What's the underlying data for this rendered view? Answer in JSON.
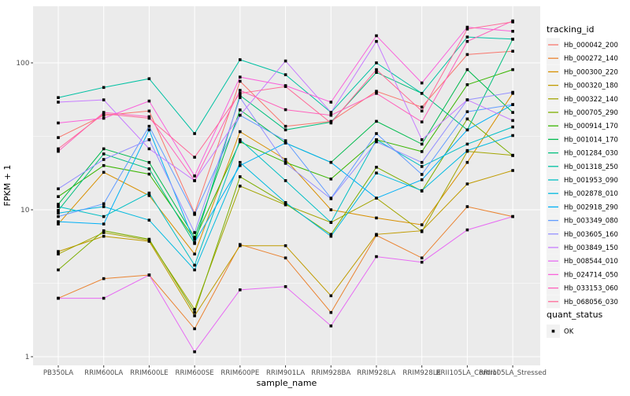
{
  "figure": {
    "background": "#FFFFFF",
    "panel_background": "#EBEBEB",
    "grid_color": "#FFFFFF",
    "tick_text_color": "#4D4D4D",
    "axis_title_color": "#000000",
    "marker_color": "#000000",
    "legend_key_background": "#F2F2F2"
  },
  "chart_data": {
    "type": "line",
    "title": "",
    "xlabel": "sample_name",
    "ylabel": "FPKM + 1",
    "y_scale": "log10",
    "y_ticks": [
      {
        "label": "1",
        "value": 1
      },
      {
        "label": "10",
        "value": 10
      },
      {
        "label": "100",
        "value": 100
      }
    ],
    "y_minor_ticks": [
      3.162,
      31.62
    ],
    "ylim": [
      1,
      243
    ],
    "grid": "white major+minor on gray panel",
    "legend_position": "right",
    "legend_title": "tracking_id",
    "point_legend": {
      "title": "quant_status",
      "items": [
        {
          "label": "OK",
          "marker": "black-square"
        }
      ]
    },
    "x_categories": [
      "PB350LA",
      "RRIM600LA",
      "RRIM600LE",
      "RRIM600SE",
      "RRIM600PE",
      "RRIM901LA",
      "RRIM928BA",
      "RRIM928LA",
      "RRIM928LE",
      "RRII105LA_Control",
      "RRII105LA_Stressed"
    ],
    "series": [
      {
        "name": "Hb_000042_200",
        "color": "#F8766D",
        "values": [
          31,
          44,
          47,
          9.5,
          75,
          37,
          40,
          64,
          50,
          114,
          120
        ]
      },
      {
        "name": "Hb_000272_140",
        "color": "#EA8331",
        "values": [
          2.5,
          3.4,
          3.6,
          1.55,
          5.8,
          4.7,
          2.0,
          6.7,
          4.7,
          10.5,
          9.0
        ]
      },
      {
        "name": "Hb_000300_220",
        "color": "#D89000",
        "values": [
          8.0,
          18,
          12.5,
          5.0,
          34,
          22,
          10,
          8.8,
          7.9,
          21,
          62
        ]
      },
      {
        "name": "Hb_000320_180",
        "color": "#C09B00",
        "values": [
          5.2,
          6.6,
          6.1,
          1.9,
          5.7,
          5.7,
          2.6,
          6.8,
          7.2,
          15,
          18.5
        ]
      },
      {
        "name": "Hb_000322_140",
        "color": "#A3A500",
        "values": [
          5.0,
          7.0,
          6.2,
          2.1,
          14.5,
          10.8,
          8.2,
          12.0,
          7.1,
          25,
          23.5
        ]
      },
      {
        "name": "Hb_000705_290",
        "color": "#7CAE00",
        "values": [
          3.9,
          7.2,
          6.3,
          2.0,
          16.8,
          11.0,
          6.8,
          19.5,
          13.4,
          41.5,
          23.4
        ]
      },
      {
        "name": "Hb_000914_170",
        "color": "#39B600",
        "values": [
          12.3,
          20,
          17.5,
          6.3,
          29,
          21,
          16.2,
          30,
          24.9,
          71,
          90
        ]
      },
      {
        "name": "Hb_001014_170",
        "color": "#00BB4E",
        "values": [
          10.9,
          26,
          21,
          6.5,
          47.8,
          28.5,
          21,
          40,
          28,
          90,
          46
        ]
      },
      {
        "name": "Hb_001284_030",
        "color": "#00BF7D",
        "values": [
          9.9,
          24,
          19,
          5.9,
          60,
          35,
          39.5,
          86,
          62,
          35,
          145
        ]
      },
      {
        "name": "Hb_001318_250",
        "color": "#00C1A3",
        "values": [
          58,
          68,
          78,
          33,
          105,
          83,
          46,
          100,
          62,
          150,
          145
        ]
      },
      {
        "name": "Hb_001953_090",
        "color": "#00BFC4",
        "values": [
          10.5,
          9.0,
          13,
          4.2,
          30,
          15.8,
          8.2,
          30,
          19.7,
          28,
          36.6
        ]
      },
      {
        "name": "Hb_002878_010",
        "color": "#00BAE0",
        "values": [
          9.5,
          10.5,
          8.5,
          3.9,
          21,
          11.2,
          6.6,
          17.8,
          13.5,
          25.3,
          32
        ]
      },
      {
        "name": "Hb_002918_290",
        "color": "#00B0F6",
        "values": [
          8.3,
          8.0,
          35,
          6.0,
          20,
          28.5,
          21,
          12,
          16,
          35,
          52
        ]
      },
      {
        "name": "Hb_003349_080",
        "color": "#619CFF",
        "values": [
          9.0,
          11,
          37,
          9.3,
          44,
          29.5,
          12,
          33,
          17.4,
          46.5,
          52
        ]
      },
      {
        "name": "Hb_003605_160",
        "color": "#9590FF",
        "values": [
          13.9,
          22,
          30,
          7.0,
          58,
          20.7,
          11.9,
          29,
          21,
          56,
          63
        ]
      },
      {
        "name": "Hb_003849_150",
        "color": "#C77CFF",
        "values": [
          54,
          56,
          26,
          15.8,
          44,
          103,
          46,
          140,
          30,
          56,
          40.5
        ]
      },
      {
        "name": "Hb_008544_010",
        "color": "#E76BF3",
        "values": [
          2.5,
          2.5,
          3.6,
          1.08,
          2.85,
          3.0,
          1.62,
          4.8,
          4.4,
          7.3,
          9.0
        ]
      },
      {
        "name": "Hb_024714_050",
        "color": "#FA62DB",
        "values": [
          39,
          42,
          55,
          17,
          80,
          70,
          54,
          153,
          73,
          175,
          164
        ]
      },
      {
        "name": "Hb_033153_060",
        "color": "#FF62BC",
        "values": [
          25,
          46,
          43,
          15.8,
          65,
          48,
          44,
          62,
          39.6,
          140,
          193
        ]
      },
      {
        "name": "Hb_068056_030",
        "color": "#FF6A98",
        "values": [
          26,
          45,
          42,
          22.8,
          62,
          69,
          39,
          90,
          47,
          170,
          190
        ]
      }
    ]
  }
}
